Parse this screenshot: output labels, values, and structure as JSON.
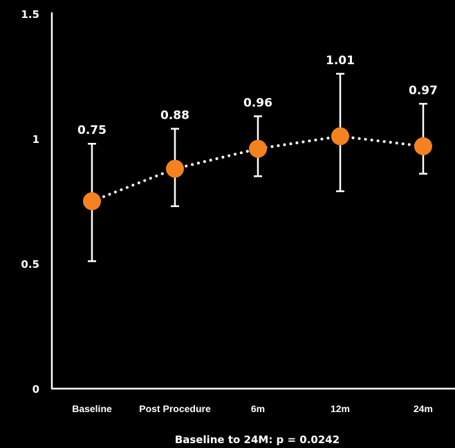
{
  "chart_data": {
    "type": "line",
    "categories": [
      "Baseline",
      "Post Procedure",
      "6m",
      "12m",
      "24m"
    ],
    "series": [
      {
        "values": [
          0.75,
          0.88,
          0.96,
          1.01,
          0.97
        ],
        "error_low": [
          0.51,
          0.73,
          0.85,
          0.79,
          0.86
        ],
        "error_high": [
          0.98,
          1.04,
          1.09,
          1.26,
          1.14
        ],
        "data_labels": [
          "0.75",
          "0.88",
          "0.96",
          "1.01",
          "0.97"
        ]
      }
    ],
    "title": "",
    "xlabel": "",
    "ylabel": "",
    "ylim": [
      0,
      1.5
    ],
    "yticks": [
      {
        "value": 0,
        "label": "0"
      },
      {
        "value": 0.5,
        "label": "0.5"
      },
      {
        "value": 1,
        "label": "1"
      },
      {
        "value": 1.5,
        "label": "1.5"
      }
    ],
    "grid": false,
    "line_style": "dotted",
    "colors": {
      "background": "#000000",
      "axis": "#ffffff",
      "marker": "#F5821F",
      "line": "#ffffff",
      "text": "#ffffff"
    }
  },
  "footnote": "Baseline to 24M: p = 0.0242"
}
